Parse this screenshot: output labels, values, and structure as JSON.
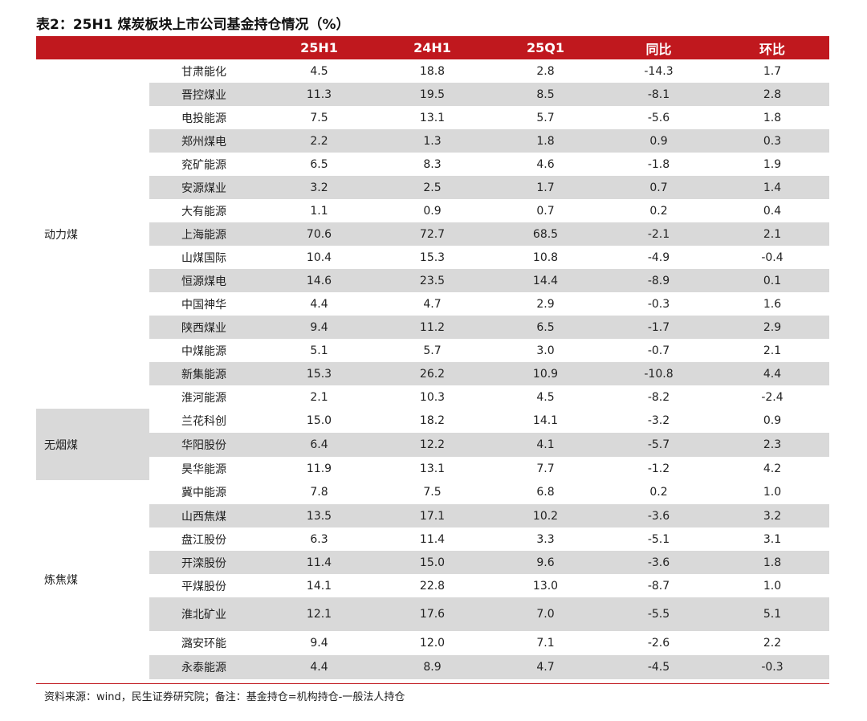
{
  "title": "表2：25H1 煤炭板块上市公司基金持仓情况（%）",
  "columns": [
    "",
    "",
    "25H1",
    "24H1",
    "25Q1",
    "同比",
    "环比"
  ],
  "groups": [
    {
      "category": "动力煤",
      "rows": [
        {
          "name": "甘肃能化",
          "v": [
            "4.5",
            "18.8",
            "2.8",
            "-14.3",
            "1.7"
          ]
        },
        {
          "name": "晋控煤业",
          "v": [
            "11.3",
            "19.5",
            "8.5",
            "-8.1",
            "2.8"
          ]
        },
        {
          "name": "电投能源",
          "v": [
            "7.5",
            "13.1",
            "5.7",
            "-5.6",
            "1.8"
          ]
        },
        {
          "name": "郑州煤电",
          "v": [
            "2.2",
            "1.3",
            "1.8",
            "0.9",
            "0.3"
          ]
        },
        {
          "name": "兖矿能源",
          "v": [
            "6.5",
            "8.3",
            "4.6",
            "-1.8",
            "1.9"
          ]
        },
        {
          "name": "安源煤业",
          "v": [
            "3.2",
            "2.5",
            "1.7",
            "0.7",
            "1.4"
          ]
        },
        {
          "name": "大有能源",
          "v": [
            "1.1",
            "0.9",
            "0.7",
            "0.2",
            "0.4"
          ]
        },
        {
          "name": "上海能源",
          "v": [
            "70.6",
            "72.7",
            "68.5",
            "-2.1",
            "2.1"
          ]
        },
        {
          "name": "山煤国际",
          "v": [
            "10.4",
            "15.3",
            "10.8",
            "-4.9",
            "-0.4"
          ]
        },
        {
          "name": "恒源煤电",
          "v": [
            "14.6",
            "23.5",
            "14.4",
            "-8.9",
            "0.1"
          ]
        },
        {
          "name": "中国神华",
          "v": [
            "4.4",
            "4.7",
            "2.9",
            "-0.3",
            "1.6"
          ]
        },
        {
          "name": "陕西煤业",
          "v": [
            "9.4",
            "11.2",
            "6.5",
            "-1.7",
            "2.9"
          ]
        },
        {
          "name": "中煤能源",
          "v": [
            "5.1",
            "5.7",
            "3.0",
            "-0.7",
            "2.1"
          ]
        },
        {
          "name": "新集能源",
          "v": [
            "15.3",
            "26.2",
            "10.9",
            "-10.8",
            "4.4"
          ]
        },
        {
          "name": "淮河能源",
          "v": [
            "2.1",
            "10.3",
            "4.5",
            "-8.2",
            "-2.4"
          ]
        }
      ]
    },
    {
      "category": "无烟煤",
      "rows": [
        {
          "name": "兰花科创",
          "v": [
            "15.0",
            "18.2",
            "14.1",
            "-3.2",
            "0.9"
          ]
        },
        {
          "name": "华阳股份",
          "v": [
            "6.4",
            "12.2",
            "4.1",
            "-5.7",
            "2.3"
          ]
        },
        {
          "name": "昊华能源",
          "v": [
            "11.9",
            "13.1",
            "7.7",
            "-1.2",
            "4.2"
          ]
        }
      ]
    },
    {
      "category": "炼焦煤",
      "rows": [
        {
          "name": "冀中能源",
          "v": [
            "7.8",
            "7.5",
            "6.8",
            "0.2",
            "1.0"
          ]
        },
        {
          "name": "山西焦煤",
          "v": [
            "13.5",
            "17.1",
            "10.2",
            "-3.6",
            "3.2"
          ]
        },
        {
          "name": "盘江股份",
          "v": [
            "6.3",
            "11.4",
            "3.3",
            "-5.1",
            "3.1"
          ]
        },
        {
          "name": "开滦股份",
          "v": [
            "11.4",
            "15.0",
            "9.6",
            "-3.6",
            "1.8"
          ]
        },
        {
          "name": "平煤股份",
          "v": [
            "14.1",
            "22.8",
            "13.0",
            "-8.7",
            "1.0"
          ]
        },
        {
          "name": "淮北矿业",
          "v": [
            "12.1",
            "17.6",
            "7.0",
            "-5.5",
            "5.1"
          ]
        },
        {
          "name": "潞安环能",
          "v": [
            "9.4",
            "12.0",
            "7.1",
            "-2.6",
            "2.2"
          ]
        },
        {
          "name": "永泰能源",
          "v": [
            "4.4",
            "8.9",
            "4.7",
            "-4.5",
            "-0.3"
          ]
        }
      ]
    }
  ],
  "source": "资料来源：wind，民生证券研究院；备注：基金持仓=机构持仓-一般法人持仓",
  "colors": {
    "header_bg": "#c0181e",
    "alt_row": "#d9d9d9"
  }
}
